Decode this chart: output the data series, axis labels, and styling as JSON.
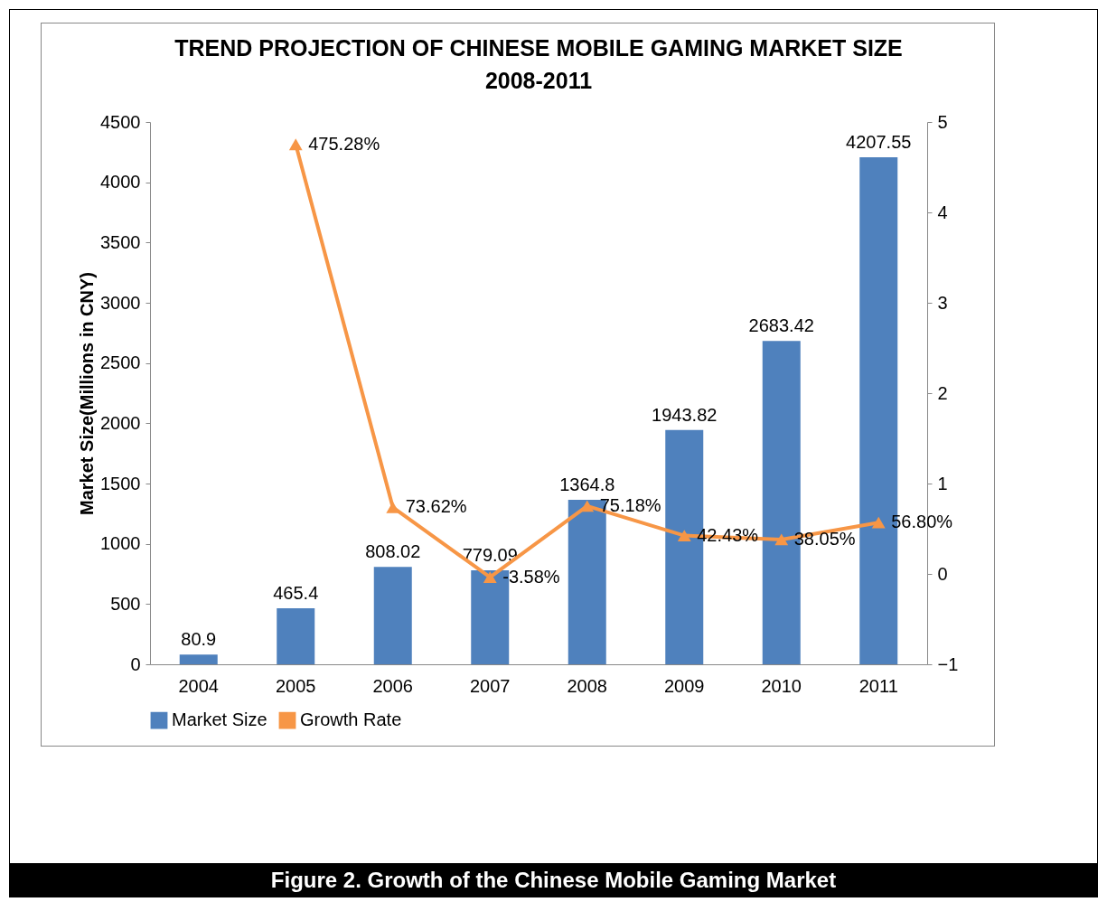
{
  "chart_data": {
    "type": "bar",
    "title": "TREND PROJECTION OF CHINESE MOBILE GAMING MARKET SIZE 2008-2011",
    "ylabel": "Market Size(Millions in CNY)",
    "categories": [
      "2004",
      "2005",
      "2006",
      "2007",
      "2008",
      "2009",
      "2010",
      "2011"
    ],
    "series": [
      {
        "name": "Market Size",
        "color": "#4f81bd",
        "values": [
          80.9,
          465.4,
          808.02,
          779.09,
          1364.8,
          1943.82,
          2683.42,
          4207.55
        ],
        "value_labels": [
          "80.9",
          "465.4",
          "808.02",
          "779.09",
          "1364.8",
          "1943.82",
          "2683.42",
          "4207.55"
        ]
      },
      {
        "name": "Growth Rate",
        "type": "line",
        "axis": "y2",
        "color": "#f79646",
        "values": [
          null,
          4.7528,
          0.7362,
          -0.0358,
          0.7518,
          0.4243,
          0.3805,
          0.568
        ],
        "value_labels": [
          null,
          "475.28%",
          "73.62%",
          "-3.58%",
          "75.18%",
          "42.43%",
          "38.05%",
          "56.80%"
        ]
      }
    ],
    "ylim": [
      0,
      4500
    ],
    "yticks": [
      0,
      500,
      1000,
      1500,
      2000,
      2500,
      3000,
      3500,
      4000,
      4500
    ],
    "y2lim": [
      -1,
      5
    ],
    "y2ticks": [
      -1,
      0,
      1,
      2,
      3,
      4,
      5
    ],
    "marker": "triangle",
    "legend": "bottom",
    "grid": false,
    "annotations": [
      "Figure 2. Growth of the Chinese Mobile Gaming Market"
    ]
  }
}
